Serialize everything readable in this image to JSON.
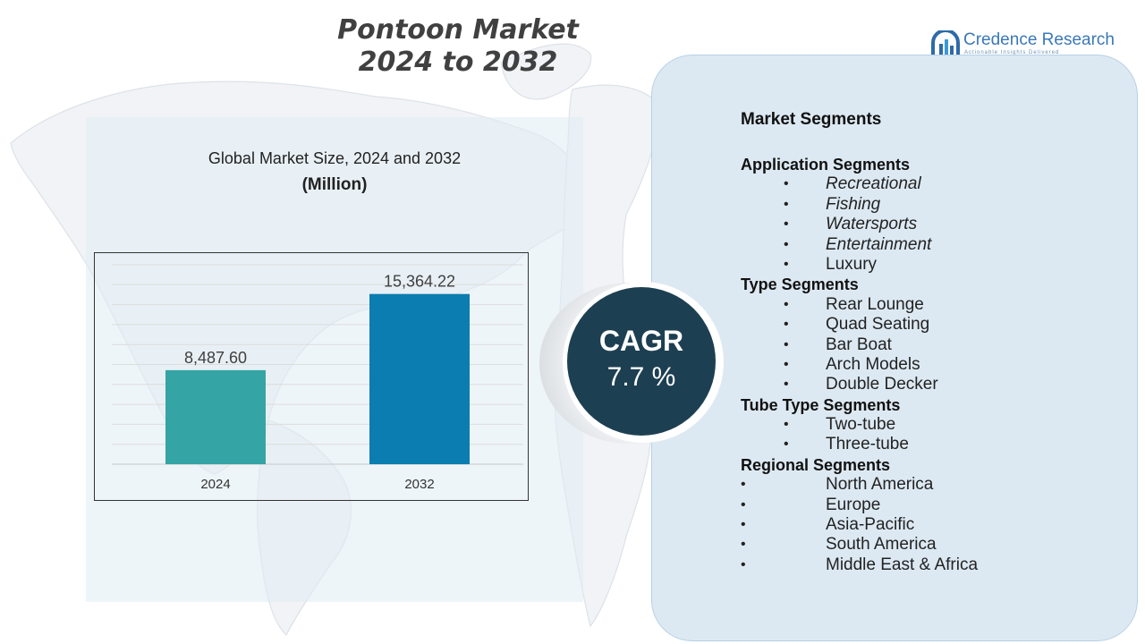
{
  "header": {
    "title_line1": "Pontoon Market",
    "title_line2": "2024 to 2032"
  },
  "brand": {
    "name": "Credence Research",
    "tagline": "Actionable Insights Delivered"
  },
  "chart": {
    "subtitle": "Global Market Size, 2024 and 2032",
    "unit": "(Million)"
  },
  "chart_data": {
    "type": "bar",
    "title": "Global Market Size, 2024 and 2032",
    "ylabel": "(Million)",
    "xlabel": "",
    "categories": [
      "2024",
      "2032"
    ],
    "values": [
      8487.6,
      15364.22
    ],
    "value_labels": [
      "8,487.60",
      "15,364.22"
    ],
    "ylim": [
      0,
      18000
    ],
    "grid": true,
    "legend": "none",
    "colors": [
      "#35a4a4",
      "#0c7db0"
    ]
  },
  "cagr": {
    "label": "CAGR",
    "value": "7.7 %"
  },
  "segments": {
    "title": "Market Segments",
    "groups": [
      {
        "heading": "Application Segments",
        "items": [
          "Recreational",
          "Fishing",
          "Watersports",
          "Entertainment",
          "Luxury"
        ]
      },
      {
        "heading": "Type Segments",
        "items": [
          "Rear Lounge",
          "Quad Seating",
          "Bar Boat",
          "Arch Models",
          "Double Decker"
        ]
      },
      {
        "heading": "Tube Type Segments",
        "items": [
          "Two-tube",
          "Three-tube"
        ]
      },
      {
        "heading": "Regional Segments",
        "items": [
          "North America",
          "Europe",
          "Asia-Pacific",
          "South America",
          "Middle East & Africa"
        ]
      }
    ]
  },
  "colors": {
    "bar_2024": "#35a4a4",
    "bar_2032": "#0c7db0",
    "cagr_fill": "#1d3f52",
    "panel": "#dde9f2"
  }
}
